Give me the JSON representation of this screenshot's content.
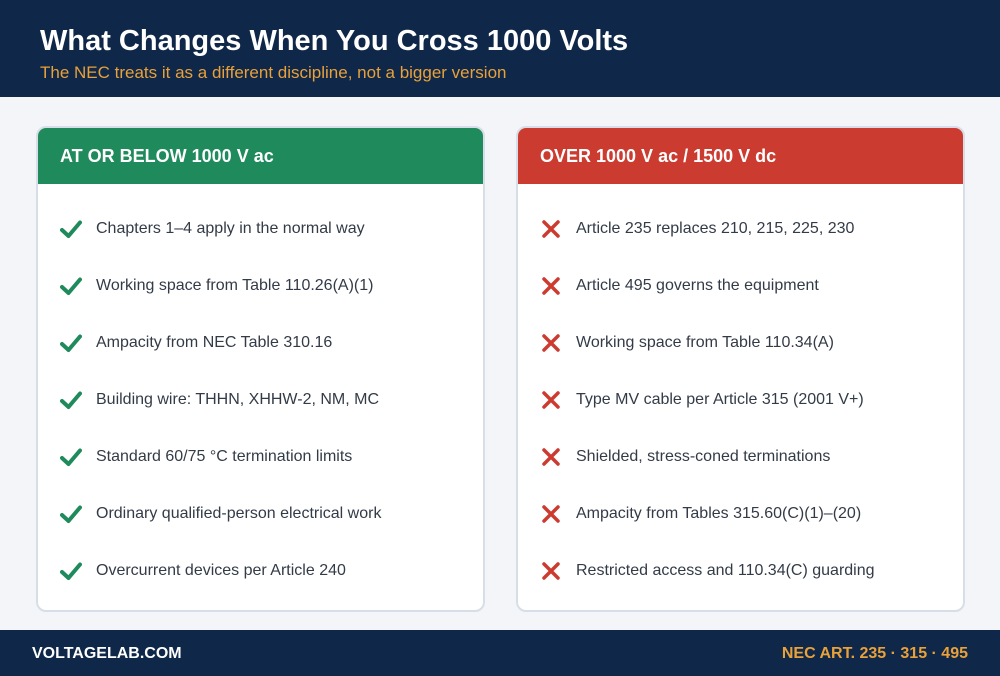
{
  "header": {
    "title": "What Changes When You Cross 1000 Volts",
    "subtitle": "The NEC treats it as a different discipline, not a bigger version"
  },
  "left_panel": {
    "heading": "AT OR BELOW 1000 V ac",
    "icon": "check-icon",
    "accent_color": "#1f8a5b",
    "items": [
      "Chapters 1–4 apply in the normal way",
      "Working space from Table 110.26(A)(1)",
      "Ampacity from NEC Table 310.16",
      "Building wire: THHN, XHHW-2, NM, MC",
      "Standard 60/75 °C termination limits",
      "Ordinary qualified-person electrical work",
      "Overcurrent devices per Article 240"
    ]
  },
  "right_panel": {
    "heading": "OVER 1000 V ac / 1500 V dc",
    "icon": "cross-icon",
    "accent_color": "#cc3b30",
    "items": [
      "Article 235 replaces 210, 215, 225, 230",
      "Article 495 governs the equipment",
      "Working space from Table 110.34(A)",
      "Type MV cable per Article 315 (2001 V+)",
      "Shielded, stress-coned terminations",
      "Ampacity from Tables 315.60(C)(1)–(20)",
      "Restricted access and 110.34(C) guarding"
    ]
  },
  "footer": {
    "brand": "VOLTAGELAB.COM",
    "references": "NEC ART. 235 · 315 · 495"
  }
}
